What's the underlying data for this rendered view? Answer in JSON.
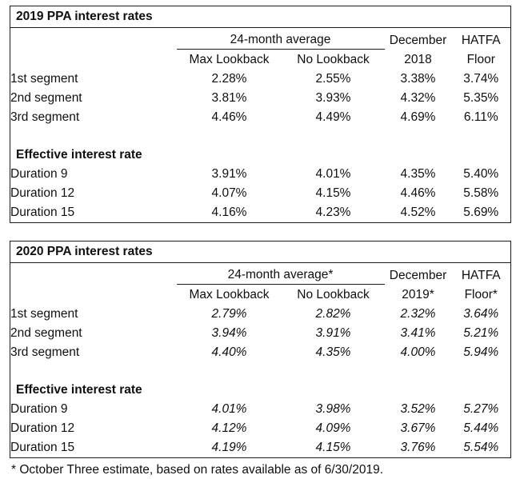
{
  "page": {
    "footnote": "* October Three estimate, based on rates available as of 6/30/2019."
  },
  "tables": [
    {
      "title": "2019 PPA interest rates",
      "group_header": "24-month average",
      "col_december_line1": "December",
      "col_december_line2": "2018",
      "col_hatfa_line1": "HATFA",
      "col_hatfa_line2": "Floor",
      "sub_header_max": "Max Lookback",
      "sub_header_no": "No Lookback",
      "section_header": "Effective interest rate",
      "segment_rows": [
        {
          "label": "1st segment",
          "values": [
            "2.28%",
            "2.55%",
            "3.38%",
            "3.74%"
          ]
        },
        {
          "label": "2nd segment",
          "values": [
            "3.81%",
            "3.93%",
            "4.32%",
            "5.35%"
          ]
        },
        {
          "label": "3rd segment",
          "values": [
            "4.46%",
            "4.49%",
            "4.69%",
            "6.11%"
          ]
        }
      ],
      "duration_rows": [
        {
          "label": "Duration 9",
          "values": [
            "3.91%",
            "4.01%",
            "4.35%",
            "5.40%"
          ]
        },
        {
          "label": "Duration 12",
          "values": [
            "4.07%",
            "4.15%",
            "4.46%",
            "5.58%"
          ]
        },
        {
          "label": "Duration 15",
          "values": [
            "4.16%",
            "4.23%",
            "4.52%",
            "5.69%"
          ]
        }
      ]
    },
    {
      "title": "2020 PPA interest rates",
      "group_header": "24-month average*",
      "col_december_line1": "December",
      "col_december_line2": "2019*",
      "col_hatfa_line1": "HATFA",
      "col_hatfa_line2": "Floor*",
      "sub_header_max": "Max Lookback",
      "sub_header_no": "No Lookback",
      "section_header": "Effective interest rate",
      "segment_rows": [
        {
          "label": "1st segment",
          "values": [
            "2.79%",
            "2.82%",
            "2.32%",
            "3.64%"
          ]
        },
        {
          "label": "2nd segment",
          "values": [
            "3.94%",
            "3.91%",
            "3.41%",
            "5.21%"
          ]
        },
        {
          "label": "3rd segment",
          "values": [
            "4.40%",
            "4.35%",
            "4.00%",
            "5.94%"
          ]
        }
      ],
      "duration_rows": [
        {
          "label": "Duration 9",
          "values": [
            "4.01%",
            "3.98%",
            "3.52%",
            "5.27%"
          ]
        },
        {
          "label": "Duration 12",
          "values": [
            "4.12%",
            "4.09%",
            "3.67%",
            "5.44%"
          ]
        },
        {
          "label": "Duration 15",
          "values": [
            "4.19%",
            "4.15%",
            "3.76%",
            "5.54%"
          ]
        }
      ]
    }
  ]
}
